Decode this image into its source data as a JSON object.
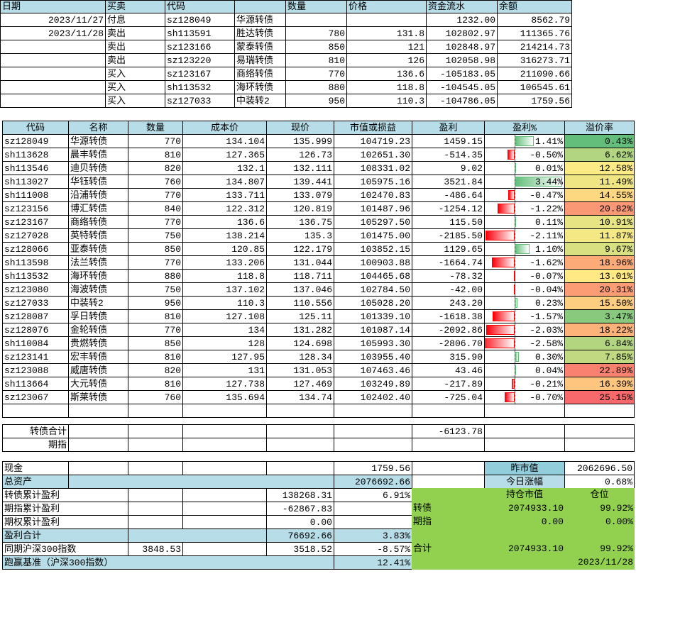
{
  "transactions": {
    "header": [
      "日期",
      "买卖",
      "代码",
      null,
      "数量",
      "价格",
      "资金流水",
      "余额"
    ],
    "rows": [
      [
        "2023/11/27",
        "付息",
        "sz128049",
        "华源转债",
        null,
        null,
        "1232.00",
        "8562.79"
      ],
      [
        "2023/11/28",
        "卖出",
        "sh113591",
        "胜达转债",
        "780",
        "131.8",
        "102802.97",
        "111365.76"
      ],
      [
        null,
        "卖出",
        "sz123166",
        "蒙泰转债",
        "850",
        "121",
        "102848.97",
        "214214.73"
      ],
      [
        null,
        "卖出",
        "sz123220",
        "易瑞转债",
        "810",
        "126",
        "102058.98",
        "316273.71"
      ],
      [
        null,
        "买入",
        "sz123167",
        "商络转债",
        "770",
        "136.6",
        "-105183.05",
        "211090.66"
      ],
      [
        null,
        "买入",
        "sh113532",
        "海环转债",
        "880",
        "118.8",
        "-104545.05",
        "106545.61"
      ],
      [
        null,
        "买入",
        "sz127033",
        "中装转2",
        "950",
        "110.3",
        "-104786.05",
        "1759.56"
      ]
    ]
  },
  "holdings": {
    "header": [
      "代码",
      "名称",
      "数量",
      "成本价",
      "现价",
      "市值或损益",
      "盈利",
      "盈利%",
      "溢价率"
    ],
    "rows": [
      [
        "sz128049",
        "华源转债",
        "770",
        "134.104",
        "135.999",
        "104719.23",
        "1459.15",
        {
          "value": 1.41,
          "label": "1.41%"
        },
        {
          "value": 0.43,
          "label": "0.43%"
        }
      ],
      [
        "sh113628",
        "晨丰转债",
        "810",
        "127.365",
        "126.73",
        "102651.30",
        "-514.35",
        {
          "value": -0.5,
          "label": "-0.50%"
        },
        {
          "value": 6.62,
          "label": "6.62%"
        }
      ],
      [
        "sh113546",
        "迪贝转债",
        "820",
        "132.1",
        "132.111",
        "108331.02",
        "9.02",
        {
          "value": 0.01,
          "label": "0.01%"
        },
        {
          "value": 12.58,
          "label": "12.58%"
        }
      ],
      [
        "sh113027",
        "华钰转债",
        "760",
        "134.807",
        "139.441",
        "105975.16",
        "3521.84",
        {
          "value": 3.44,
          "label": "3.44%"
        },
        {
          "value": 11.49,
          "label": "11.49%"
        }
      ],
      [
        "sh111008",
        "沿浦转债",
        "770",
        "133.711",
        "133.079",
        "102470.83",
        "-486.64",
        {
          "value": -0.47,
          "label": "-0.47%"
        },
        {
          "value": 14.55,
          "label": "14.55%"
        }
      ],
      [
        "sz123156",
        "博汇转债",
        "840",
        "122.312",
        "120.819",
        "101487.96",
        "-1254.12",
        {
          "value": -1.22,
          "label": "-1.22%"
        },
        {
          "value": 20.82,
          "label": "20.82%"
        }
      ],
      [
        "sz123167",
        "商络转债",
        "770",
        "136.6",
        "136.75",
        "105297.50",
        "115.50",
        {
          "value": 0.11,
          "label": "0.11%"
        },
        {
          "value": 10.91,
          "label": "10.91%"
        }
      ],
      [
        "sz127028",
        "英特转债",
        "750",
        "138.214",
        "135.3",
        "101475.00",
        "-2185.50",
        {
          "value": -2.11,
          "label": "-2.11%"
        },
        {
          "value": 11.87,
          "label": "11.87%"
        }
      ],
      [
        "sz128066",
        "亚泰转债",
        "850",
        "120.85",
        "122.179",
        "103852.15",
        "1129.65",
        {
          "value": 1.1,
          "label": "1.10%"
        },
        {
          "value": 9.67,
          "label": "9.67%"
        }
      ],
      [
        "sh113598",
        "法兰转债",
        "770",
        "133.206",
        "131.044",
        "100903.88",
        "-1664.74",
        {
          "value": -1.62,
          "label": "-1.62%"
        },
        {
          "value": 18.96,
          "label": "18.96%"
        }
      ],
      [
        "sh113532",
        "海环转债",
        "880",
        "118.8",
        "118.711",
        "104465.68",
        "-78.32",
        {
          "value": -0.07,
          "label": "-0.07%"
        },
        {
          "value": 13.01,
          "label": "13.01%"
        }
      ],
      [
        "sz123080",
        "海波转债",
        "750",
        "137.102",
        "137.046",
        "102784.50",
        "-42.00",
        {
          "value": -0.04,
          "label": "-0.04%"
        },
        {
          "value": 20.31,
          "label": "20.31%"
        }
      ],
      [
        "sz127033",
        "中装转2",
        "950",
        "110.3",
        "110.556",
        "105028.20",
        "243.20",
        {
          "value": 0.23,
          "label": "0.23%"
        },
        {
          "value": 15.5,
          "label": "15.50%"
        }
      ],
      [
        "sz128087",
        "孚日转债",
        "810",
        "127.108",
        "125.11",
        "101339.10",
        "-1618.38",
        {
          "value": -1.57,
          "label": "-1.57%"
        },
        {
          "value": 3.47,
          "label": "3.47%"
        }
      ],
      [
        "sz128076",
        "金轮转债",
        "770",
        "134",
        "131.282",
        "101087.14",
        "-2092.86",
        {
          "value": -2.03,
          "label": "-2.03%"
        },
        {
          "value": 18.22,
          "label": "18.22%"
        }
      ],
      [
        "sh110084",
        "贵燃转债",
        "850",
        "128",
        "124.698",
        "105993.30",
        "-2806.70",
        {
          "value": -2.58,
          "label": "-2.58%"
        },
        {
          "value": 6.84,
          "label": "6.84%"
        }
      ],
      [
        "sz123141",
        "宏丰转债",
        "810",
        "127.95",
        "128.34",
        "103955.40",
        "315.90",
        {
          "value": 0.3,
          "label": "0.30%"
        },
        {
          "value": 7.85,
          "label": "7.85%"
        }
      ],
      [
        "sz123088",
        "威唐转债",
        "820",
        "131",
        "131.053",
        "107463.46",
        "43.46",
        {
          "value": 0.04,
          "label": "0.04%"
        },
        {
          "value": 22.89,
          "label": "22.89%"
        }
      ],
      [
        "sh113664",
        "大元转债",
        "810",
        "127.738",
        "127.469",
        "103249.89",
        "-217.89",
        {
          "value": -0.21,
          "label": "-0.21%"
        },
        {
          "value": 16.39,
          "label": "16.39%"
        }
      ],
      [
        "sz123067",
        "斯莱转债",
        "760",
        "135.694",
        "134.74",
        "102402.40",
        "-725.04",
        {
          "value": -0.7,
          "label": "-0.70%"
        },
        {
          "value": 25.15,
          "label": "25.15%"
        }
      ]
    ]
  },
  "summary": {
    "bond_total": {
      "label": "转债合计",
      "profit": "-6123.78"
    },
    "futures": {
      "label": "期指"
    },
    "cash": {
      "label": "现金",
      "value": "1759.56"
    },
    "total_assets": {
      "label": "总资产",
      "value": "2076692.66"
    },
    "bond_cum_profit": {
      "label": "转债累计盈利",
      "value": "138268.31",
      "pct": "6.91%"
    },
    "futures_cum_profit": {
      "label": "期指累计盈利",
      "value": "-62867.83"
    },
    "options_cum_profit": {
      "label": "期权累计盈利",
      "value": "0.00"
    },
    "profit_total": {
      "label": "盈利合计",
      "value": "76692.66",
      "pct": "3.83%"
    },
    "hs300": {
      "label": "同期沪深300指数",
      "start": "3848.53",
      "value": "3518.52",
      "pct": "-8.57%"
    },
    "excess": {
      "label": "跑赢基准（沪深300指数）",
      "pct": "12.41%"
    }
  },
  "market": {
    "prev_value_label": "昨市值",
    "prev_value": "2062696.50",
    "change_label": "今日涨幅",
    "change": "0.68%",
    "header": [
      "持仓市值",
      "仓位"
    ],
    "rows": [
      [
        "转债",
        "2074933.10",
        "99.92%"
      ],
      [
        "期指",
        "0.00",
        "0.00%"
      ],
      [
        "合计",
        "2074933.10",
        "99.92%"
      ]
    ],
    "date": "2023/11/28"
  }
}
